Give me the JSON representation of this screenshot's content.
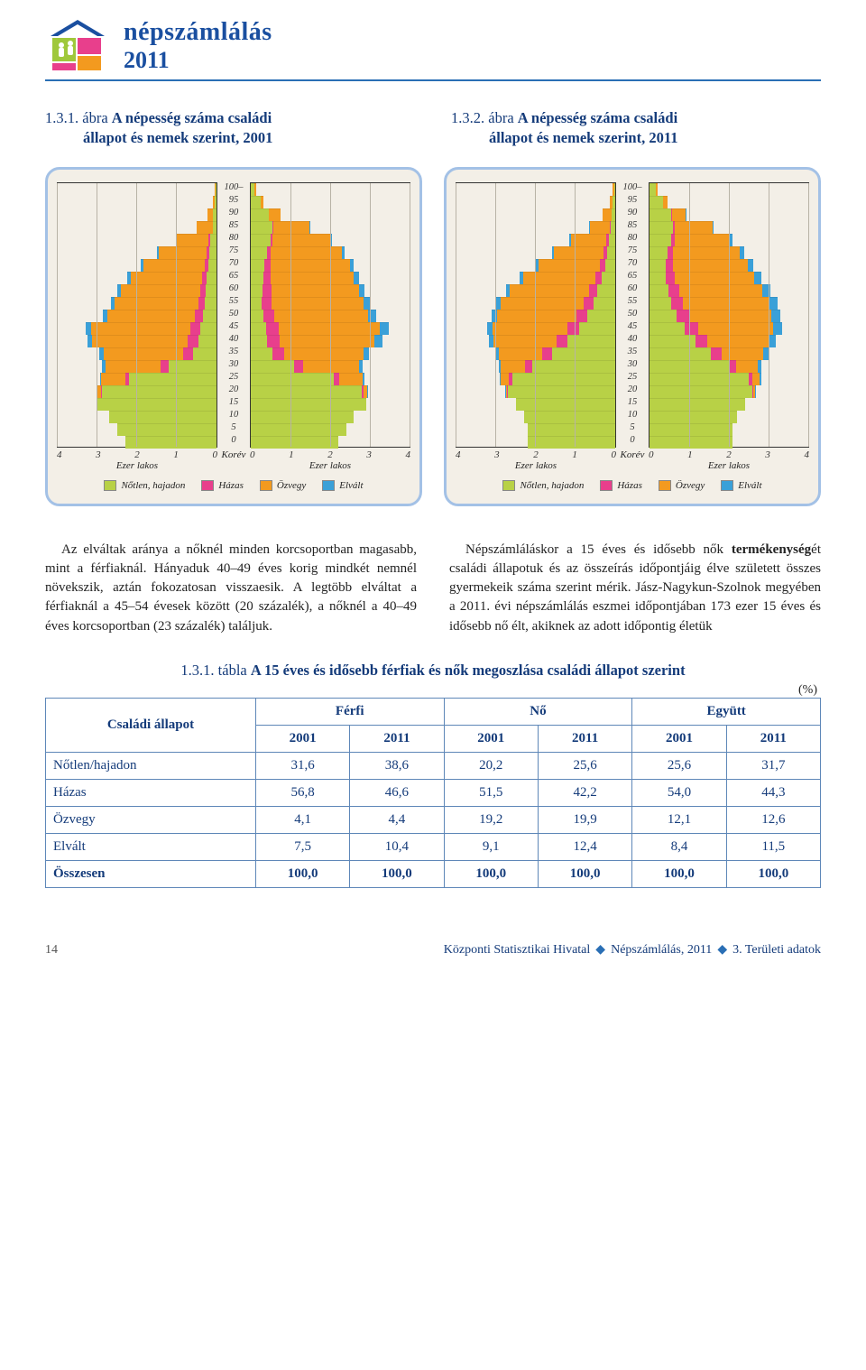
{
  "brand": {
    "line1": "népszámlálás",
    "line2": "2011",
    "logo_colors": {
      "roof": "#1a4fa0",
      "block_a": "#9fc83b",
      "block_b": "#e83f8c",
      "block_c": "#f39a1f",
      "people": "#ffffff"
    }
  },
  "hr_color": "#2a6fb5",
  "chart1": {
    "title_num": "1.3.1. ábra ",
    "title_rest_l1": "A népesség száma családi",
    "title_rest_l2": "állapot és nemek szerint, 2001"
  },
  "chart2": {
    "title_num": "1.3.2. ábra ",
    "title_rest_l1": "A népesség száma családi",
    "title_rest_l2": "állapot és nemek szerint, 2011"
  },
  "pyramid_common": {
    "male_label": "Férfi",
    "female_label": "Nő",
    "age_ticks": [
      "100–",
      "95",
      "90",
      "85",
      "80",
      "75",
      "70",
      "65",
      "60",
      "55",
      "50",
      "45",
      "40",
      "35",
      "30",
      "25",
      "20",
      "15",
      "10",
      "5",
      "0"
    ],
    "x_ticks": [
      "4",
      "3",
      "2",
      "1",
      "0"
    ],
    "x_ticks_r": [
      "0",
      "1",
      "2",
      "3",
      "4"
    ],
    "x_label": "Ezer lakos",
    "center_label": "Korév",
    "x_max": 4,
    "legend": [
      {
        "label": "Nőtlen, hajadon",
        "color": "#b8d146"
      },
      {
        "label": "Házas",
        "color": "#e83f8c"
      },
      {
        "label": "Özvegy",
        "color": "#f39a1f"
      },
      {
        "label": "Elvált",
        "color": "#3aa0d8"
      }
    ],
    "chart_bg": "#f3efe7",
    "card_border": "#a3c1e6",
    "grid_color": "#b8b3a6"
  },
  "pyr2001": {
    "male": [
      [
        0.02,
        0,
        0.02,
        0
      ],
      [
        0.05,
        0,
        0.05,
        0
      ],
      [
        0.08,
        0,
        0.15,
        0
      ],
      [
        0.1,
        0,
        0.4,
        0
      ],
      [
        0.15,
        0.05,
        0.8,
        0.02
      ],
      [
        0.18,
        0.08,
        1.2,
        0.04
      ],
      [
        0.2,
        0.1,
        1.55,
        0.05
      ],
      [
        0.25,
        0.12,
        1.8,
        0.07
      ],
      [
        0.28,
        0.14,
        2.0,
        0.08
      ],
      [
        0.3,
        0.16,
        2.1,
        0.1
      ],
      [
        0.35,
        0.2,
        2.2,
        0.12
      ],
      [
        0.4,
        0.25,
        2.5,
        0.14
      ],
      [
        0.45,
        0.28,
        2.4,
        0.13
      ],
      [
        0.6,
        0.25,
        2.0,
        0.1
      ],
      [
        1.2,
        0.2,
        1.4,
        0.08
      ],
      [
        2.2,
        0.1,
        0.6,
        0.04
      ],
      [
        2.9,
        0.02,
        0.1,
        0.01
      ],
      [
        3.0,
        0,
        0,
        0
      ],
      [
        2.7,
        0,
        0,
        0
      ],
      [
        2.5,
        0,
        0,
        0
      ],
      [
        2.3,
        0,
        0,
        0
      ]
    ],
    "female": [
      [
        0.1,
        0,
        0.04,
        0
      ],
      [
        0.25,
        0,
        0.06,
        0
      ],
      [
        0.45,
        0,
        0.3,
        0
      ],
      [
        0.55,
        0.02,
        0.9,
        0.02
      ],
      [
        0.5,
        0.05,
        1.45,
        0.04
      ],
      [
        0.4,
        0.1,
        1.8,
        0.07
      ],
      [
        0.35,
        0.15,
        2.0,
        0.1
      ],
      [
        0.32,
        0.18,
        2.1,
        0.13
      ],
      [
        0.3,
        0.22,
        2.2,
        0.15
      ],
      [
        0.28,
        0.25,
        2.3,
        0.17
      ],
      [
        0.32,
        0.28,
        2.35,
        0.2
      ],
      [
        0.38,
        0.32,
        2.55,
        0.22
      ],
      [
        0.42,
        0.3,
        2.4,
        0.2
      ],
      [
        0.55,
        0.28,
        2.0,
        0.15
      ],
      [
        1.1,
        0.22,
        1.4,
        0.1
      ],
      [
        2.1,
        0.12,
        0.6,
        0.05
      ],
      [
        2.8,
        0.03,
        0.1,
        0.01
      ],
      [
        2.9,
        0,
        0,
        0
      ],
      [
        2.6,
        0,
        0,
        0
      ],
      [
        2.4,
        0,
        0,
        0
      ],
      [
        2.2,
        0,
        0,
        0
      ]
    ]
  },
  "pyr2011": {
    "male": [
      [
        0.03,
        0,
        0.03,
        0
      ],
      [
        0.06,
        0,
        0.08,
        0
      ],
      [
        0.1,
        0,
        0.22,
        0
      ],
      [
        0.12,
        0.02,
        0.5,
        0.01
      ],
      [
        0.16,
        0.06,
        0.9,
        0.03
      ],
      [
        0.2,
        0.1,
        1.25,
        0.05
      ],
      [
        0.25,
        0.13,
        1.55,
        0.07
      ],
      [
        0.35,
        0.16,
        1.8,
        0.09
      ],
      [
        0.45,
        0.2,
        2.0,
        0.11
      ],
      [
        0.55,
        0.24,
        2.1,
        0.13
      ],
      [
        0.7,
        0.28,
        2.0,
        0.14
      ],
      [
        0.9,
        0.3,
        1.9,
        0.13
      ],
      [
        1.2,
        0.28,
        1.6,
        0.11
      ],
      [
        1.6,
        0.24,
        1.1,
        0.09
      ],
      [
        2.1,
        0.18,
        0.6,
        0.06
      ],
      [
        2.6,
        0.08,
        0.2,
        0.03
      ],
      [
        2.7,
        0.02,
        0.04,
        0.01
      ],
      [
        2.5,
        0,
        0,
        0
      ],
      [
        2.3,
        0,
        0,
        0
      ],
      [
        2.2,
        0,
        0,
        0
      ],
      [
        2.2,
        0,
        0,
        0
      ]
    ],
    "female": [
      [
        0.15,
        0,
        0.05,
        0
      ],
      [
        0.35,
        0,
        0.1,
        0
      ],
      [
        0.55,
        0.01,
        0.35,
        0.01
      ],
      [
        0.6,
        0.03,
        0.95,
        0.03
      ],
      [
        0.55,
        0.08,
        1.4,
        0.06
      ],
      [
        0.45,
        0.13,
        1.7,
        0.1
      ],
      [
        0.4,
        0.18,
        1.9,
        0.14
      ],
      [
        0.42,
        0.22,
        2.0,
        0.17
      ],
      [
        0.48,
        0.27,
        2.1,
        0.2
      ],
      [
        0.55,
        0.3,
        2.15,
        0.22
      ],
      [
        0.68,
        0.33,
        2.05,
        0.23
      ],
      [
        0.88,
        0.34,
        1.9,
        0.21
      ],
      [
        1.15,
        0.3,
        1.55,
        0.18
      ],
      [
        1.55,
        0.26,
        1.05,
        0.14
      ],
      [
        2.0,
        0.18,
        0.55,
        0.09
      ],
      [
        2.5,
        0.09,
        0.18,
        0.04
      ],
      [
        2.6,
        0.02,
        0.03,
        0.01
      ],
      [
        2.4,
        0,
        0,
        0
      ],
      [
        2.2,
        0,
        0,
        0
      ],
      [
        2.1,
        0,
        0,
        0
      ],
      [
        2.1,
        0,
        0,
        0
      ]
    ]
  },
  "para_left": "Az elváltak aránya a nőknél minden korcsoportban magasabb, mint a férfiaknál. Hányaduk 40–49 éves korig mindkét nemnél növekszik, aztán fokozatosan visszaesik. A legtöbb elváltat a férfiaknál a 45–54 évesek között (20 százalék), a nőknél a 40–49 éves korcsoportban (23 százalék) találjuk.",
  "para_right": "Népszámláláskor a 15 éves és idősebb nők termékenységét családi állapotuk és az összeírás időpontjáig élve született összes gyermekeik száma szerint mérik. Jász-Nagykun-Szolnok megyében a 2011. évi népszámlálás eszmei időpontjában 173 ezer 15 éves és idősebb nő élt, akiknek az adott időpontig életük",
  "para_bold_word": "termékenység",
  "table": {
    "title_num": "1.3.1. tábla ",
    "title_rest": "A 15 éves és idősebb férfiak és nők megoszlása családi állapot szerint",
    "unit": "(%)",
    "col_group_labels": [
      "Férfi",
      "Nő",
      "Együtt"
    ],
    "year_labels": [
      "2001",
      "2011"
    ],
    "rowhead_label": "Családi állapot",
    "rows": [
      {
        "label": "Nőtlen/hajadon",
        "vals": [
          "31,6",
          "38,6",
          "20,2",
          "25,6",
          "25,6",
          "31,7"
        ]
      },
      {
        "label": "Házas",
        "vals": [
          "56,8",
          "46,6",
          "51,5",
          "42,2",
          "54,0",
          "44,3"
        ]
      },
      {
        "label": "Özvegy",
        "vals": [
          "4,1",
          "4,4",
          "19,2",
          "19,9",
          "12,1",
          "12,6"
        ]
      },
      {
        "label": "Elvált",
        "vals": [
          "7,5",
          "10,4",
          "9,1",
          "12,4",
          "8,4",
          "11,5"
        ]
      }
    ],
    "total": {
      "label": "Összesen",
      "vals": [
        "100,0",
        "100,0",
        "100,0",
        "100,0",
        "100,0",
        "100,0"
      ]
    },
    "border_color": "#5e87b8",
    "text_color": "#143b7a"
  },
  "footer": {
    "page": "14",
    "src1": "Központi Statisztikai Hivatal",
    "src2": "Népszámlálás, 2011",
    "src3": "3. Területi adatok"
  }
}
